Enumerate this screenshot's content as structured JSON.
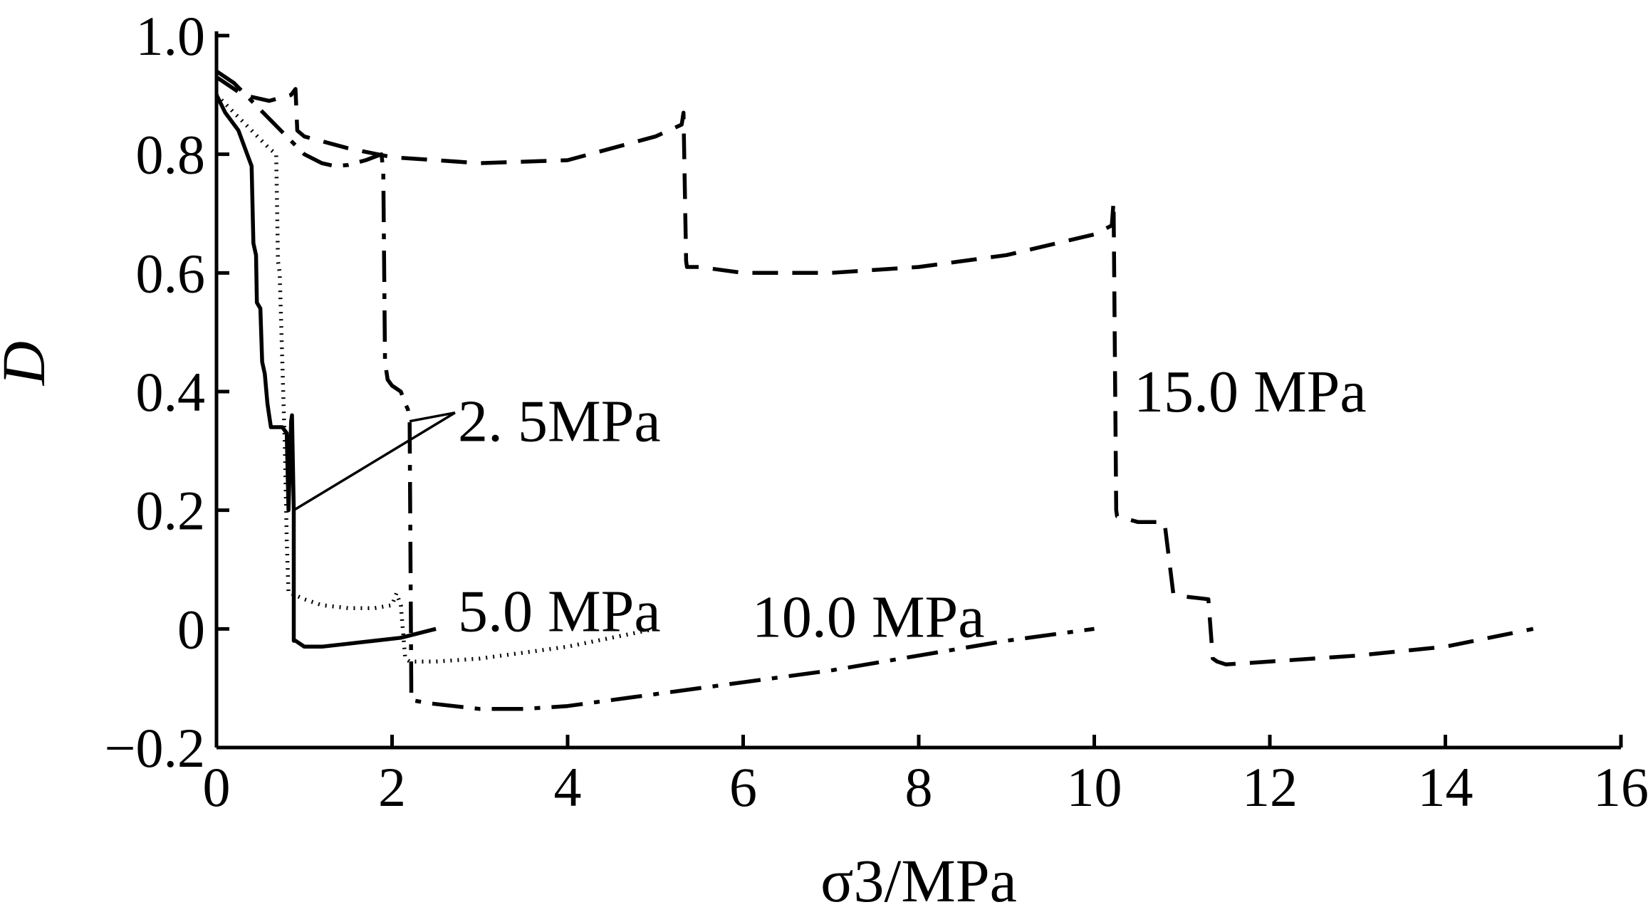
{
  "chart_data": {
    "type": "line",
    "xlabel": "σ3/MPa",
    "ylabel": "D",
    "xlim": [
      0,
      16
    ],
    "ylim": [
      -0.2,
      1.0
    ],
    "xticks": [
      0,
      2,
      4,
      6,
      8,
      10,
      12,
      14,
      16
    ],
    "yticks": [
      -0.2,
      0,
      0.2,
      0.4,
      0.6,
      0.8,
      1.0
    ],
    "xtick_labels": [
      "0",
      "2",
      "4",
      "6",
      "8",
      "10",
      "12",
      "14",
      "16"
    ],
    "ytick_labels": [
      "−0.2",
      "0",
      "0.2",
      "0.4",
      "0.6",
      "0.8",
      "1.0"
    ],
    "grid": false,
    "series": [
      {
        "name": "2. 5MPa",
        "style": "solid",
        "color": "#000000",
        "x": [
          0.0,
          0.1,
          0.25,
          0.35,
          0.4,
          0.42,
          0.45,
          0.46,
          0.5,
          0.52,
          0.55,
          0.58,
          0.6,
          0.62,
          0.68,
          0.75,
          0.8,
          0.82,
          0.85,
          0.86,
          0.88,
          0.88,
          0.9,
          1.0,
          1.2,
          1.5,
          1.8,
          2.1,
          2.5
        ],
        "y": [
          0.9,
          0.87,
          0.84,
          0.8,
          0.78,
          0.65,
          0.63,
          0.55,
          0.54,
          0.45,
          0.43,
          0.38,
          0.36,
          0.34,
          0.34,
          0.34,
          0.33,
          0.2,
          0.35,
          0.36,
          0.2,
          -0.02,
          -0.02,
          -0.03,
          -0.03,
          -0.025,
          -0.02,
          -0.015,
          0.0
        ]
      },
      {
        "name": "5.0 MPa",
        "style": "dotted",
        "color": "#000000",
        "x": [
          0.0,
          0.2,
          0.4,
          0.6,
          0.68,
          0.7,
          0.72,
          0.75,
          0.78,
          0.8,
          0.82,
          0.85,
          1.0,
          1.2,
          1.5,
          1.8,
          2.0,
          2.05,
          2.1,
          2.15,
          2.2,
          2.5,
          3.0,
          3.5,
          4.0,
          4.5,
          5.0
        ],
        "y": [
          0.9,
          0.87,
          0.84,
          0.81,
          0.8,
          0.62,
          0.6,
          0.45,
          0.3,
          0.15,
          0.06,
          0.06,
          0.05,
          0.04,
          0.035,
          0.035,
          0.04,
          0.06,
          0.04,
          -0.05,
          -0.055,
          -0.055,
          -0.05,
          -0.04,
          -0.03,
          -0.015,
          0.0
        ]
      },
      {
        "name": "10.0 MPa",
        "style": "dashdot",
        "color": "#000000",
        "x": [
          0.0,
          0.2,
          0.4,
          0.6,
          0.8,
          1.0,
          1.2,
          1.35,
          1.5,
          1.7,
          1.88,
          1.9,
          1.92,
          1.95,
          2.0,
          2.1,
          2.15,
          2.18,
          2.2,
          2.22,
          2.4,
          2.7,
          3.0,
          3.5,
          4.0,
          4.5,
          5.0,
          6.0,
          7.0,
          8.0,
          9.0,
          10.0
        ],
        "y": [
          0.94,
          0.92,
          0.89,
          0.86,
          0.83,
          0.8,
          0.785,
          0.78,
          0.782,
          0.79,
          0.8,
          0.77,
          0.45,
          0.42,
          0.41,
          0.4,
          0.38,
          0.37,
          0.35,
          -0.12,
          -0.125,
          -0.13,
          -0.135,
          -0.135,
          -0.13,
          -0.12,
          -0.11,
          -0.09,
          -0.07,
          -0.045,
          -0.02,
          0.0
        ]
      },
      {
        "name": "15.0 MPa",
        "style": "dashed",
        "color": "#000000",
        "x": [
          0.0,
          0.3,
          0.6,
          0.85,
          0.9,
          0.92,
          1.0,
          1.5,
          2.0,
          3.0,
          4.0,
          5.0,
          5.3,
          5.32,
          5.35,
          5.36,
          5.5,
          6.0,
          7.0,
          8.0,
          9.0,
          10.0,
          10.2,
          10.22,
          10.25,
          10.26,
          10.5,
          10.8,
          10.9,
          11.0,
          11.3,
          11.35,
          11.4,
          11.5,
          12.0,
          13.0,
          14.0,
          15.0
        ],
        "y": [
          0.93,
          0.9,
          0.89,
          0.9,
          0.91,
          0.84,
          0.83,
          0.81,
          0.795,
          0.785,
          0.79,
          0.83,
          0.85,
          0.87,
          0.62,
          0.61,
          0.61,
          0.6,
          0.6,
          0.61,
          0.63,
          0.665,
          0.68,
          0.72,
          0.2,
          0.19,
          0.18,
          0.18,
          0.06,
          0.055,
          0.05,
          -0.05,
          -0.055,
          -0.06,
          -0.055,
          -0.045,
          -0.03,
          0.0
        ]
      }
    ],
    "annotations": [
      {
        "text": "2. 5MPa",
        "x": 2.75,
        "y": 0.35,
        "leader_to": [
          [
            0.88,
            0.2
          ],
          [
            2.2,
            0.35
          ]
        ]
      },
      {
        "text": "5.0 MPa",
        "x": 2.75,
        "y": 0.03
      },
      {
        "text": "10.0 MPa",
        "x": 6.1,
        "y": 0.02
      },
      {
        "text": "15.0 MPa",
        "x": 10.45,
        "y": 0.4
      }
    ]
  }
}
